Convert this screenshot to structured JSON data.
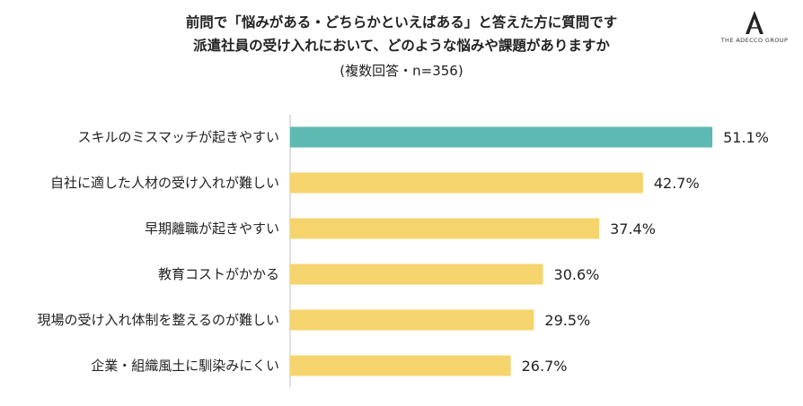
{
  "header": {
    "title_line1": "前問で「悩みがある・どちらかといえばある」と答えた方に質問です",
    "title_line2": "派遣社員の受け入れにおいて、どのような悩みや課題がありますか",
    "subtitle": "(複数回答・n=356)"
  },
  "logo": {
    "text": "THE ADECCO GROUP",
    "icon": "adecco-a-icon"
  },
  "colors": {
    "highlight": "#5DB9B2",
    "default": "#F5D46E",
    "axis": "#BFBFBF"
  },
  "chart_data": {
    "type": "bar",
    "orientation": "horizontal",
    "categories": [
      "スキルのミスマッチが起きやすい",
      "自社に適した人材の受け入れが難しい",
      "早期離職が起きやすい",
      "教育コストがかかる",
      "現場の受け入れ体制を整えるのが難しい",
      "企業・組織風土に馴染みにくい"
    ],
    "values": [
      51.1,
      42.7,
      37.4,
      30.6,
      29.5,
      26.7
    ],
    "value_labels": [
      "51.1%",
      "42.7%",
      "37.4%",
      "30.6%",
      "29.5%",
      "26.7%"
    ],
    "highlight_index": 0,
    "xlim": [
      0,
      60
    ],
    "grid": false,
    "legend": "none"
  }
}
